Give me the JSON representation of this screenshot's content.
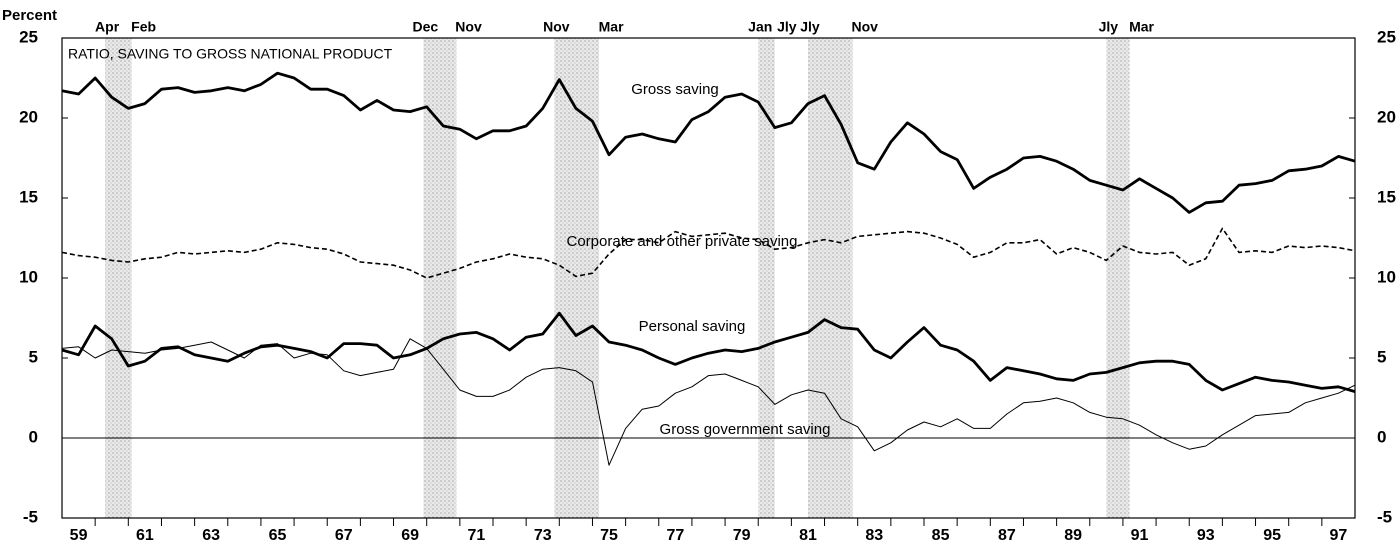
{
  "chart_data": {
    "type": "line",
    "y_label": "Percent",
    "annotation": "RATIO, SAVING TO GROSS NATIONAL PRODUCT",
    "x": [
      1959,
      1959.5,
      1960,
      1960.5,
      1961,
      1961.5,
      1962,
      1962.5,
      1963,
      1963.5,
      1964,
      1964.5,
      1965,
      1965.5,
      1966,
      1966.5,
      1967,
      1967.5,
      1968,
      1968.5,
      1969,
      1969.5,
      1970,
      1970.5,
      1971,
      1971.5,
      1972,
      1972.5,
      1973,
      1973.5,
      1974,
      1974.5,
      1975,
      1975.5,
      1976,
      1976.5,
      1977,
      1977.5,
      1978,
      1978.5,
      1979,
      1979.5,
      1980,
      1980.5,
      1981,
      1981.5,
      1982,
      1982.5,
      1983,
      1983.5,
      1984,
      1984.5,
      1985,
      1985.5,
      1986,
      1986.5,
      1987,
      1987.5,
      1988,
      1988.5,
      1989,
      1989.5,
      1990,
      1990.5,
      1991,
      1991.5,
      1992,
      1992.5,
      1993,
      1993.5,
      1994,
      1994.5,
      1995,
      1995.5,
      1996,
      1996.5,
      1997,
      1997.5,
      1998
    ],
    "series": [
      {
        "name": "Gross saving",
        "color": "#000000",
        "style": "thick",
        "values": [
          21.7,
          21.5,
          22.5,
          21.3,
          20.6,
          20.9,
          21.8,
          21.9,
          21.6,
          21.7,
          21.9,
          21.7,
          22.1,
          22.8,
          22.5,
          21.8,
          21.8,
          21.4,
          20.5,
          21.1,
          20.5,
          20.4,
          20.7,
          19.5,
          19.3,
          18.7,
          19.2,
          19.2,
          19.5,
          20.6,
          22.4,
          20.6,
          19.8,
          17.7,
          18.8,
          19.0,
          18.7,
          18.5,
          19.9,
          20.4,
          21.3,
          21.5,
          21.0,
          19.4,
          19.7,
          20.9,
          21.4,
          19.6,
          17.2,
          16.8,
          18.5,
          19.7,
          19.0,
          17.9,
          17.4,
          15.6,
          16.3,
          16.8,
          17.5,
          17.6,
          17.3,
          16.8,
          16.1,
          15.8,
          15.5,
          16.2,
          15.6,
          15.0,
          14.1,
          14.7,
          14.8,
          15.8,
          15.9,
          16.1,
          16.7,
          16.8,
          17.0,
          17.6,
          17.3
        ]
      },
      {
        "name": "Corporate and other private saving",
        "color": "#000000",
        "style": "dashed",
        "values": [
          11.6,
          11.4,
          11.3,
          11.1,
          11.0,
          11.2,
          11.3,
          11.6,
          11.5,
          11.6,
          11.7,
          11.6,
          11.8,
          12.2,
          12.1,
          11.9,
          11.8,
          11.5,
          11.0,
          10.9,
          10.8,
          10.5,
          10.0,
          10.3,
          10.6,
          11.0,
          11.2,
          11.5,
          11.3,
          11.2,
          10.8,
          10.1,
          10.3,
          11.5,
          12.4,
          12.4,
          12.2,
          12.9,
          12.6,
          12.7,
          12.8,
          12.5,
          12.4,
          11.8,
          11.9,
          12.2,
          12.4,
          12.2,
          12.6,
          12.7,
          12.8,
          12.9,
          12.8,
          12.5,
          12.1,
          11.3,
          11.6,
          12.2,
          12.2,
          12.4,
          11.5,
          11.9,
          11.6,
          11.1,
          12.0,
          11.6,
          11.5,
          11.6,
          10.8,
          11.2,
          13.1,
          11.6,
          11.7,
          11.6,
          12.0,
          11.9,
          12.0,
          11.9,
          11.7
        ]
      },
      {
        "name": "Personal saving",
        "color": "#000000",
        "style": "thick",
        "values": [
          5.5,
          5.2,
          7.0,
          6.2,
          4.5,
          4.8,
          5.6,
          5.7,
          5.2,
          5.0,
          4.8,
          5.3,
          5.7,
          5.8,
          5.6,
          5.4,
          5.0,
          5.9,
          5.9,
          5.8,
          5.0,
          5.2,
          5.6,
          6.2,
          6.5,
          6.6,
          6.2,
          5.5,
          6.3,
          6.5,
          7.8,
          6.4,
          7.0,
          6.0,
          5.8,
          5.5,
          5.0,
          4.6,
          5.0,
          5.3,
          5.5,
          5.4,
          5.6,
          6.0,
          6.3,
          6.6,
          7.4,
          6.9,
          6.8,
          5.5,
          5.0,
          6.0,
          6.9,
          5.8,
          5.5,
          4.8,
          3.6,
          4.4,
          4.2,
          4.0,
          3.7,
          3.6,
          4.0,
          4.1,
          4.4,
          4.7,
          4.8,
          4.8,
          4.6,
          3.6,
          3.0,
          3.4,
          3.8,
          3.6,
          3.5,
          3.3,
          3.1,
          3.2,
          2.9
        ]
      },
      {
        "name": "Gross government saving",
        "color": "#000000",
        "style": "thin",
        "values": [
          5.6,
          5.7,
          5.0,
          5.5,
          5.4,
          5.3,
          5.5,
          5.6,
          5.8,
          6.0,
          5.5,
          5.0,
          5.8,
          5.9,
          5.0,
          5.3,
          5.2,
          4.2,
          3.9,
          4.1,
          4.3,
          6.2,
          5.6,
          4.3,
          3.0,
          2.6,
          2.6,
          3.0,
          3.8,
          4.3,
          4.4,
          4.2,
          3.5,
          -1.7,
          0.6,
          1.8,
          2.0,
          2.8,
          3.2,
          3.9,
          4.0,
          3.6,
          3.2,
          2.1,
          2.7,
          3.0,
          2.8,
          1.2,
          0.7,
          -0.8,
          -0.3,
          0.5,
          1.0,
          0.7,
          1.2,
          0.6,
          0.6,
          1.5,
          2.2,
          2.3,
          2.5,
          2.2,
          1.6,
          1.3,
          1.2,
          0.8,
          0.2,
          -0.3,
          -0.7,
          -0.5,
          0.2,
          0.8,
          1.4,
          1.5,
          1.6,
          2.2,
          2.5,
          2.8,
          3.3
        ]
      }
    ],
    "recessions": [
      {
        "start": 1960.3,
        "end": 1961.1,
        "start_label": "Apr",
        "end_label": "Feb"
      },
      {
        "start": 1969.9,
        "end": 1970.9,
        "start_label": "Dec",
        "end_label": "Nov"
      },
      {
        "start": 1973.85,
        "end": 1975.2,
        "start_label": "Nov",
        "end_label": "Mar"
      },
      {
        "start": 1980.0,
        "end": 1980.5,
        "start_label": "Jan",
        "end_label": "Jly"
      },
      {
        "start": 1981.5,
        "end": 1982.85,
        "start_label": "Jly",
        "end_label": "Nov"
      },
      {
        "start": 1990.5,
        "end": 1991.2,
        "start_label": "Jly",
        "end_label": "Mar"
      }
    ],
    "xlim": [
      1959,
      1998
    ],
    "xticks": [
      {
        "value": 1959.5,
        "label": "59"
      },
      {
        "value": 1961.5,
        "label": "61"
      },
      {
        "value": 1963.5,
        "label": "63"
      },
      {
        "value": 1965.5,
        "label": "65"
      },
      {
        "value": 1967.5,
        "label": "67"
      },
      {
        "value": 1969.5,
        "label": "69"
      },
      {
        "value": 1971.5,
        "label": "71"
      },
      {
        "value": 1973.5,
        "label": "73"
      },
      {
        "value": 1975.5,
        "label": "75"
      },
      {
        "value": 1977.5,
        "label": "77"
      },
      {
        "value": 1979.5,
        "label": "79"
      },
      {
        "value": 1981.5,
        "label": "81"
      },
      {
        "value": 1983.5,
        "label": "83"
      },
      {
        "value": 1985.5,
        "label": "85"
      },
      {
        "value": 1987.5,
        "label": "87"
      },
      {
        "value": 1989.5,
        "label": "89"
      },
      {
        "value": 1991.5,
        "label": "91"
      },
      {
        "value": 1993.5,
        "label": "93"
      },
      {
        "value": 1995.5,
        "label": "95"
      },
      {
        "value": 1997.5,
        "label": "97"
      }
    ],
    "xminorticks": [
      1960,
      1961,
      1962,
      1963,
      1964,
      1965,
      1966,
      1967,
      1968,
      1969,
      1970,
      1971,
      1972,
      1973,
      1974,
      1975,
      1976,
      1977,
      1978,
      1979,
      1980,
      1981,
      1982,
      1983,
      1984,
      1985,
      1986,
      1987,
      1988,
      1989,
      1990,
      1991,
      1992,
      1993,
      1994,
      1995,
      1996,
      1997
    ],
    "ylim": [
      -5,
      25
    ],
    "yticks": [
      -5,
      0,
      5,
      10,
      15,
      20,
      25
    ],
    "y2lim": [
      -5,
      25
    ],
    "y2ticks": [
      -5,
      0,
      5,
      10,
      15,
      20,
      25
    ],
    "zero_line": true
  }
}
